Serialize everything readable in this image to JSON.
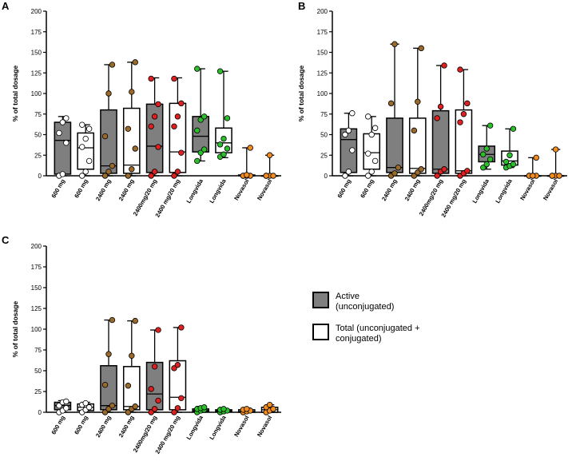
{
  "legend": {
    "active": [
      "Active",
      "(unconjugated)"
    ],
    "total": [
      "Total (unconjugated +",
      "conjugated)"
    ]
  },
  "colors": {
    "active_fill": "#7f7f7f",
    "total_fill": "#ffffff",
    "brown": "#9a6a2a",
    "red": "#e02020",
    "green": "#2bbf2b",
    "orange": "#f28c1f",
    "white_point": "#ffffff"
  },
  "chart_data": [
    {
      "panel": "A",
      "type": "box",
      "ylabel": "% of total dosage",
      "ylim": [
        0,
        200
      ],
      "yticks": [
        0,
        25,
        50,
        75,
        100,
        125,
        150,
        175,
        200
      ],
      "categories": [
        "600 mg",
        "600 mg",
        "2400 mg",
        "2400 mg",
        "2400mg/20 mg",
        "2400 mg/20 mg",
        "Longvida",
        "Longvida",
        "Novasol",
        "Novasol"
      ],
      "groups": [
        {
          "kind": "active",
          "color": "white",
          "min": 0,
          "q1": 2,
          "median": 43,
          "q3": 65,
          "max": 72,
          "points": [
            0,
            2,
            40,
            52,
            65,
            70
          ]
        },
        {
          "kind": "total",
          "color": "white",
          "min": 0,
          "q1": 8,
          "median": 34,
          "q3": 52,
          "max": 62,
          "points": [
            0,
            5,
            18,
            35,
            45,
            57,
            62
          ]
        },
        {
          "kind": "active",
          "color": "brown",
          "min": 0,
          "q1": 3,
          "median": 12,
          "q3": 80,
          "max": 135,
          "points": [
            0,
            5,
            12,
            48,
            100,
            135
          ]
        },
        {
          "kind": "total",
          "color": "brown",
          "min": 0,
          "q1": 3,
          "median": 13,
          "q3": 82,
          "max": 138,
          "points": [
            0,
            8,
            33,
            57,
            102,
            138
          ]
        },
        {
          "kind": "active",
          "color": "red",
          "min": 0,
          "q1": 4,
          "median": 36,
          "q3": 87,
          "max": 119,
          "points": [
            0,
            5,
            35,
            60,
            72,
            87,
            118
          ]
        },
        {
          "kind": "total",
          "color": "red",
          "min": 0,
          "q1": 4,
          "median": 29,
          "q3": 88,
          "max": 119,
          "points": [
            0,
            5,
            28,
            60,
            72,
            88,
            118
          ]
        },
        {
          "kind": "active",
          "color": "green",
          "min": 18,
          "q1": 29,
          "median": 48,
          "q3": 72,
          "max": 130,
          "points": [
            18,
            28,
            32,
            55,
            68,
            72,
            130
          ]
        },
        {
          "kind": "total",
          "color": "green",
          "min": 22,
          "q1": 28,
          "median": 40,
          "q3": 58,
          "max": 127,
          "points": [
            23,
            26,
            33,
            38,
            45,
            70,
            127
          ]
        },
        {
          "kind": "total",
          "color": "orange",
          "min": 0,
          "q1": 0,
          "median": 0,
          "q3": 1,
          "max": 34,
          "points": [
            0,
            0,
            0,
            0,
            1,
            34
          ]
        },
        {
          "kind": "total",
          "color": "orange",
          "min": 0,
          "q1": 0,
          "median": 0,
          "q3": 0,
          "max": 25,
          "points": [
            0,
            0,
            0,
            0,
            25
          ]
        }
      ]
    },
    {
      "panel": "B",
      "type": "box",
      "ylabel": "% of total dosage",
      "ylim": [
        0,
        200
      ],
      "yticks": [
        0,
        25,
        50,
        75,
        100,
        125,
        150,
        175,
        200
      ],
      "categories": [
        "600 mg",
        "600 mg",
        "2400 mg",
        "2400 mg",
        "2400mg/20 mg",
        "2400 mg/20 mg",
        "Longvida",
        "Longvida",
        "Novasol",
        "Novasol"
      ],
      "groups": [
        {
          "kind": "active",
          "color": "white",
          "min": 0,
          "q1": 4,
          "median": 44,
          "q3": 57,
          "max": 76,
          "points": [
            0,
            5,
            31,
            50,
            55,
            76
          ]
        },
        {
          "kind": "total",
          "color": "white",
          "min": 0,
          "q1": 8,
          "median": 28,
          "q3": 51,
          "max": 72,
          "points": [
            0,
            5,
            18,
            27,
            50,
            58,
            72
          ]
        },
        {
          "kind": "active",
          "color": "brown",
          "min": 0,
          "q1": 4,
          "median": 10,
          "q3": 70,
          "max": 160,
          "points": [
            0,
            3,
            10,
            88,
            160
          ]
        },
        {
          "kind": "total",
          "color": "brown",
          "min": 0,
          "q1": 3,
          "median": 9,
          "q3": 70,
          "max": 155,
          "points": [
            0,
            4,
            8,
            55,
            90,
            155
          ]
        },
        {
          "kind": "active",
          "color": "red",
          "min": 0,
          "q1": 3,
          "median": 8,
          "q3": 79,
          "max": 134,
          "points": [
            0,
            5,
            8,
            70,
            84,
            134
          ]
        },
        {
          "kind": "total",
          "color": "red",
          "min": 0,
          "q1": 3,
          "median": 6,
          "q3": 80,
          "max": 129,
          "points": [
            0,
            3,
            6,
            65,
            75,
            88,
            129
          ]
        },
        {
          "kind": "active",
          "color": "green",
          "min": 8,
          "q1": 17,
          "median": 26,
          "q3": 36,
          "max": 61,
          "points": [
            10,
            14,
            20,
            26,
            33,
            61
          ]
        },
        {
          "kind": "total",
          "color": "green",
          "min": 10,
          "q1": 13,
          "median": 18,
          "q3": 30,
          "max": 57,
          "points": [
            10,
            12,
            14,
            17,
            25,
            57
          ]
        },
        {
          "kind": "total",
          "color": "orange",
          "min": 0,
          "q1": 0,
          "median": 0,
          "q3": 0,
          "max": 22,
          "points": [
            0,
            0,
            0,
            0,
            0,
            22
          ]
        },
        {
          "kind": "total",
          "color": "orange",
          "min": 0,
          "q1": 0,
          "median": 0,
          "q3": 0,
          "max": 32,
          "points": [
            0,
            0,
            0,
            0,
            32
          ]
        }
      ]
    },
    {
      "panel": "C",
      "type": "box",
      "ylabel": "% of total dosage",
      "ylim": [
        0,
        200
      ],
      "yticks": [
        0,
        25,
        50,
        75,
        100,
        125,
        150,
        175,
        200
      ],
      "categories": [
        "600 mg",
        "600 mg",
        "2400 mg",
        "2400 mg",
        "2400mg/20 mg",
        "2400 mg/20 mg",
        "Longvida",
        "Longvida",
        "Novasol",
        "Novasol"
      ],
      "groups": [
        {
          "kind": "active",
          "color": "white",
          "min": 0,
          "q1": 3,
          "median": 8,
          "q3": 12,
          "max": 14,
          "points": [
            0,
            2,
            5,
            8,
            12,
            13
          ]
        },
        {
          "kind": "total",
          "color": "white",
          "min": 0,
          "q1": 2,
          "median": 6,
          "q3": 10,
          "max": 12,
          "points": [
            0,
            3,
            6,
            9,
            11
          ]
        },
        {
          "kind": "active",
          "color": "brown",
          "min": 0,
          "q1": 3,
          "median": 8,
          "q3": 56,
          "max": 111,
          "points": [
            0,
            4,
            8,
            33,
            70,
            111
          ]
        },
        {
          "kind": "total",
          "color": "brown",
          "min": 0,
          "q1": 3,
          "median": 7,
          "q3": 55,
          "max": 110,
          "points": [
            0,
            4,
            7,
            32,
            68,
            110
          ]
        },
        {
          "kind": "active",
          "color": "red",
          "min": 0,
          "q1": 3,
          "median": 22,
          "q3": 60,
          "max": 99,
          "points": [
            0,
            4,
            14,
            28,
            55,
            99
          ]
        },
        {
          "kind": "total",
          "color": "red",
          "min": 0,
          "q1": 3,
          "median": 18,
          "q3": 62,
          "max": 102,
          "points": [
            0,
            5,
            17,
            53,
            57,
            102
          ]
        },
        {
          "kind": "active",
          "color": "green",
          "min": 0,
          "q1": 1,
          "median": 2,
          "q3": 4,
          "max": 7,
          "points": [
            0,
            2,
            3,
            4,
            5,
            6
          ]
        },
        {
          "kind": "total",
          "color": "green",
          "min": 0,
          "q1": 1,
          "median": 2,
          "q3": 3,
          "max": 4,
          "points": [
            0,
            1,
            2,
            3,
            4
          ]
        },
        {
          "kind": "total",
          "color": "orange",
          "min": 0,
          "q1": 0,
          "median": 1,
          "q3": 3,
          "max": 5,
          "points": [
            0,
            1,
            2,
            3,
            4
          ]
        },
        {
          "kind": "total",
          "color": "orange",
          "min": 0,
          "q1": 0,
          "median": 3,
          "q3": 6,
          "max": 9,
          "points": [
            0,
            2,
            4,
            6,
            9
          ]
        }
      ]
    }
  ]
}
